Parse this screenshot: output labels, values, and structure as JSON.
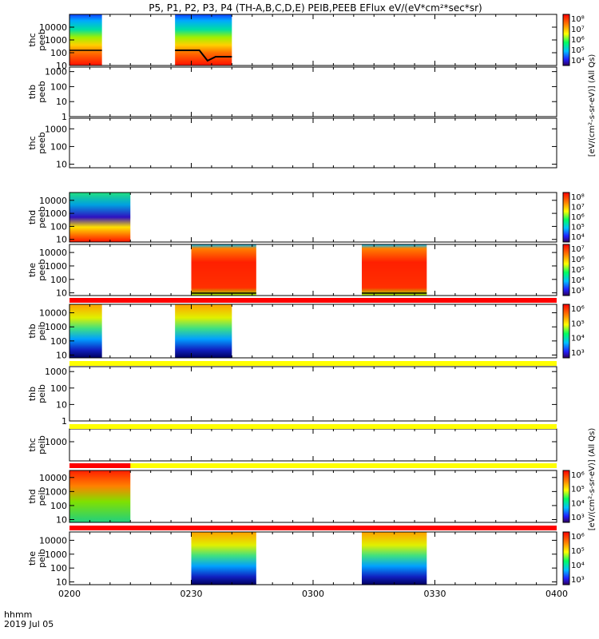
{
  "title": "P5, P1, P2, P3, P4 (TH-A,B,C,D,E) PEIB,PEEB EFlux eV/(eV*cm²*sec*sr)",
  "colorbar_unit_top": "[eV/(cm²-s-sr-eV)] (All Qs)",
  "colorbar_unit_bottom": "[eV/(cm²-s-sr-eV)] (All Qs)",
  "x_title": "hhmm",
  "date_label": "2019 Jul 05",
  "colors": {
    "line": "#000000",
    "red_band": "#ff0000",
    "yellow_band": "#ffff00"
  },
  "chart_data": {
    "type": "heatmap",
    "x_axis": {
      "range": [
        "0200",
        "0400"
      ],
      "tick_labels": [
        "0200",
        "0230",
        "0300",
        "0330",
        "0400"
      ]
    },
    "y_scale": "log",
    "panels": [
      {
        "name": "thc peeb",
        "probe": "thc",
        "species": "peeb",
        "y_ticks": [
          "10",
          "100",
          "1000",
          "10000"
        ],
        "blocks": [
          {
            "start": "0200",
            "end": "0208"
          },
          {
            "start": "0226",
            "end": "0240"
          }
        ],
        "colorbar_ticks": [
          "10⁸",
          "10⁷",
          "10⁶",
          "10⁵",
          "10⁴"
        ]
      },
      {
        "name": "thb peeb",
        "probe": "thb",
        "species": "peeb",
        "y_ticks": [
          "1",
          "10",
          "100",
          "1000"
        ],
        "blocks": []
      },
      {
        "name": "thc peeb (2)",
        "probe": "thc",
        "species": "peeb",
        "y_ticks": [
          "10",
          "100",
          "1000"
        ],
        "blocks": []
      },
      {
        "name": "thd peeb",
        "probe": "thd",
        "species": "peeb",
        "y_ticks": [
          "10",
          "100",
          "1000",
          "10000"
        ],
        "blocks": [
          {
            "start": "0200",
            "end": "0215"
          }
        ],
        "colorbar_ticks": [
          "10⁸",
          "10⁷",
          "10⁶",
          "10⁵",
          "10⁴"
        ]
      },
      {
        "name": "the peeb",
        "probe": "the",
        "species": "peeb",
        "y_ticks": [
          "10",
          "100",
          "1000",
          "10000"
        ],
        "blocks": [
          {
            "start": "0230",
            "end": "0246"
          },
          {
            "start": "0312",
            "end": "0328"
          }
        ],
        "colorbar_ticks": [
          "10⁷",
          "10⁶",
          "10⁵",
          "10⁴",
          "10³"
        ]
      },
      {
        "name": "thb peib",
        "probe": "thb",
        "species": "peib",
        "y_ticks": [
          "10",
          "100",
          "1000",
          "10000"
        ],
        "blocks": [
          {
            "start": "0200",
            "end": "0208"
          },
          {
            "start": "0226",
            "end": "0240"
          }
        ],
        "colorbar_ticks": [
          "10⁶",
          "10⁵",
          "10⁴",
          "10³"
        ]
      },
      {
        "name": "thb peib (2)",
        "probe": "thb",
        "species": "peib",
        "y_ticks": [
          "1",
          "10",
          "100",
          "1000"
        ],
        "blocks": []
      },
      {
        "name": "thc peib",
        "probe": "thc",
        "species": "peib",
        "y_ticks": [
          "1000"
        ],
        "blocks": []
      },
      {
        "name": "thd peib",
        "probe": "thd",
        "species": "peib",
        "y_ticks": [
          "10",
          "100",
          "1000",
          "10000"
        ],
        "blocks": [
          {
            "start": "0200",
            "end": "0215"
          }
        ],
        "colorbar_ticks": [
          "10⁶",
          "10⁵",
          "10⁴",
          "10³"
        ]
      },
      {
        "name": "the peib",
        "probe": "the",
        "species": "peib",
        "y_ticks": [
          "10",
          "100",
          "1000",
          "10000"
        ],
        "blocks": [
          {
            "start": "0230",
            "end": "0246"
          },
          {
            "start": "0312",
            "end": "0328"
          }
        ],
        "colorbar_ticks": [
          "10⁶",
          "10⁵",
          "10⁴",
          "10³"
        ]
      }
    ]
  }
}
